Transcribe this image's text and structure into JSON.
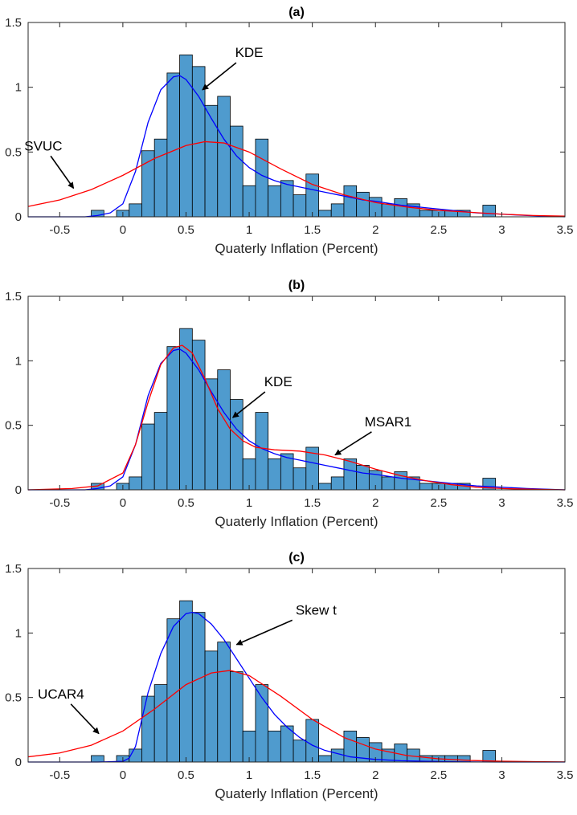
{
  "figure": {
    "description_title": "Histogram of quarterly inflation with fitted densities"
  },
  "chart_data": [
    {
      "type": "bar",
      "title": "(a)",
      "xlabel": "Quaterly Inflation (Percent)",
      "ylabel": "",
      "xlim": [
        -0.75,
        3.5
      ],
      "ylim": [
        0,
        1.5
      ],
      "xticks": [
        -0.5,
        0,
        0.5,
        1,
        1.5,
        2,
        2.5,
        3,
        3.5
      ],
      "xtick_labels": [
        "-0.5",
        "0",
        "0.5",
        "1",
        "1.5",
        "2",
        "2.5",
        "3",
        "3.5"
      ],
      "yticks": [
        0,
        0.5,
        1,
        1.5
      ],
      "ytick_labels": [
        "0",
        "0.5",
        "1",
        "1.5"
      ],
      "histogram": {
        "bin_start": -0.25,
        "bin_width": 0.1,
        "counts": [
          0.05,
          0,
          0.05,
          0.1,
          0.51,
          0.6,
          1.11,
          1.25,
          1.16,
          0.86,
          0.93,
          0.7,
          0.24,
          0.6,
          0.24,
          0.28,
          0.17,
          0.33,
          0.05,
          0.1,
          0.24,
          0.19,
          0.15,
          0.1,
          0.14,
          0.1,
          0.05,
          0.05,
          0.05,
          0.05,
          0,
          0.09
        ],
        "color": "#4f9bce"
      },
      "series": [
        {
          "name": "KDE",
          "color": "#0000ff",
          "x": [
            -0.75,
            -0.3,
            -0.2,
            -0.1,
            0,
            0.1,
            0.2,
            0.3,
            0.4,
            0.45,
            0.5,
            0.6,
            0.7,
            0.8,
            0.9,
            1,
            1.1,
            1.2,
            1.3,
            1.4,
            1.5,
            1.6,
            1.7,
            1.8,
            1.9,
            2,
            2.2,
            2.4,
            2.6,
            2.8,
            3,
            3.2,
            3.5
          ],
          "y": [
            0,
            0,
            0.01,
            0.03,
            0.1,
            0.35,
            0.73,
            0.98,
            1.08,
            1.09,
            1.06,
            0.93,
            0.76,
            0.6,
            0.47,
            0.38,
            0.32,
            0.28,
            0.25,
            0.23,
            0.21,
            0.19,
            0.17,
            0.15,
            0.13,
            0.12,
            0.09,
            0.07,
            0.05,
            0.03,
            0.02,
            0.01,
            0
          ]
        },
        {
          "name": "SVUC",
          "color": "#ff0000",
          "x": [
            -0.75,
            -0.5,
            -0.25,
            0,
            0.25,
            0.5,
            0.65,
            0.8,
            1,
            1.25,
            1.5,
            1.75,
            2,
            2.25,
            2.5,
            2.75,
            3,
            3.25,
            3.5
          ],
          "y": [
            0.08,
            0.13,
            0.21,
            0.32,
            0.45,
            0.55,
            0.58,
            0.57,
            0.5,
            0.37,
            0.25,
            0.17,
            0.11,
            0.075,
            0.05,
            0.035,
            0.02,
            0.01,
            0.005
          ]
        }
      ],
      "annotations": [
        {
          "text": "KDE",
          "x": 1.0,
          "y": 1.27,
          "arrow_to": [
            0.63,
            0.98
          ]
        },
        {
          "text": "SVUC",
          "x": -0.63,
          "y": 0.55,
          "arrow_to": [
            -0.39,
            0.22
          ]
        }
      ]
    },
    {
      "type": "bar",
      "title": "(b)",
      "xlabel": "Quaterly Inflation (Percent)",
      "ylabel": "",
      "xlim": [
        -0.75,
        3.5
      ],
      "ylim": [
        0,
        1.5
      ],
      "xticks": [
        -0.5,
        0,
        0.5,
        1,
        1.5,
        2,
        2.5,
        3,
        3.5
      ],
      "xtick_labels": [
        "-0.5",
        "0",
        "0.5",
        "1",
        "1.5",
        "2",
        "2.5",
        "3",
        "3.5"
      ],
      "yticks": [
        0,
        0.5,
        1,
        1.5
      ],
      "ytick_labels": [
        "0",
        "0.5",
        "1",
        "1.5"
      ],
      "histogram": {
        "bin_start": -0.25,
        "bin_width": 0.1,
        "counts": [
          0.05,
          0,
          0.05,
          0.1,
          0.51,
          0.6,
          1.11,
          1.25,
          1.16,
          0.86,
          0.93,
          0.7,
          0.24,
          0.6,
          0.24,
          0.28,
          0.17,
          0.33,
          0.05,
          0.1,
          0.24,
          0.19,
          0.15,
          0.1,
          0.14,
          0.1,
          0.05,
          0.05,
          0.05,
          0.05,
          0,
          0.09
        ],
        "color": "#4f9bce"
      },
      "series": [
        {
          "name": "KDE",
          "color": "#0000ff",
          "x": [
            -0.75,
            -0.3,
            -0.2,
            -0.1,
            0,
            0.1,
            0.2,
            0.3,
            0.4,
            0.45,
            0.5,
            0.6,
            0.7,
            0.8,
            0.9,
            1,
            1.1,
            1.2,
            1.3,
            1.4,
            1.5,
            1.6,
            1.7,
            1.8,
            1.9,
            2,
            2.2,
            2.4,
            2.6,
            2.8,
            3,
            3.2,
            3.5
          ],
          "y": [
            0,
            0,
            0.01,
            0.03,
            0.1,
            0.35,
            0.73,
            0.98,
            1.08,
            1.09,
            1.06,
            0.93,
            0.76,
            0.6,
            0.47,
            0.38,
            0.32,
            0.28,
            0.25,
            0.23,
            0.21,
            0.19,
            0.17,
            0.15,
            0.13,
            0.12,
            0.09,
            0.07,
            0.05,
            0.03,
            0.02,
            0.01,
            0
          ]
        },
        {
          "name": "MSAR1",
          "color": "#ff0000",
          "x": [
            -0.75,
            -0.4,
            -0.2,
            0,
            0.1,
            0.2,
            0.3,
            0.4,
            0.47,
            0.55,
            0.65,
            0.75,
            0.85,
            0.95,
            1.05,
            1.2,
            1.4,
            1.6,
            1.8,
            2,
            2.2,
            2.4,
            2.6,
            2.8,
            3,
            3.2,
            3.5
          ],
          "y": [
            0,
            0.01,
            0.03,
            0.13,
            0.35,
            0.68,
            0.97,
            1.1,
            1.12,
            1.06,
            0.86,
            0.63,
            0.47,
            0.38,
            0.33,
            0.31,
            0.3,
            0.27,
            0.22,
            0.16,
            0.11,
            0.07,
            0.04,
            0.02,
            0.01,
            0.005,
            0
          ]
        }
      ],
      "annotations": [
        {
          "text": "KDE",
          "x": 1.23,
          "y": 0.84,
          "arrow_to": [
            0.87,
            0.56
          ]
        },
        {
          "text": "MSAR1",
          "x": 2.1,
          "y": 0.53,
          "arrow_to": [
            1.68,
            0.27
          ]
        }
      ]
    },
    {
      "type": "bar",
      "title": "(c)",
      "xlabel": "Quaterly Inflation (Percent)",
      "ylabel": "",
      "xlim": [
        -0.75,
        3.5
      ],
      "ylim": [
        0,
        1.5
      ],
      "xticks": [
        -0.5,
        0,
        0.5,
        1,
        1.5,
        2,
        2.5,
        3,
        3.5
      ],
      "xtick_labels": [
        "-0.5",
        "0",
        "0.5",
        "1",
        "1.5",
        "2",
        "2.5",
        "3",
        "3.5"
      ],
      "yticks": [
        0,
        0.5,
        1,
        1.5
      ],
      "ytick_labels": [
        "0",
        "0.5",
        "1",
        "1.5"
      ],
      "histogram": {
        "bin_start": -0.25,
        "bin_width": 0.1,
        "counts": [
          0.05,
          0,
          0.05,
          0.1,
          0.51,
          0.6,
          1.11,
          1.25,
          1.16,
          0.86,
          0.93,
          0.7,
          0.24,
          0.6,
          0.24,
          0.28,
          0.17,
          0.33,
          0.05,
          0.1,
          0.24,
          0.19,
          0.15,
          0.1,
          0.14,
          0.1,
          0.05,
          0.05,
          0.05,
          0.05,
          0,
          0.09
        ],
        "color": "#4f9bce"
      },
      "series": [
        {
          "name": "Skew t",
          "color": "#0000ff",
          "x": [
            -0.75,
            -0.2,
            0,
            0.05,
            0.1,
            0.15,
            0.2,
            0.3,
            0.4,
            0.5,
            0.55,
            0.6,
            0.7,
            0.8,
            0.9,
            1,
            1.1,
            1.2,
            1.3,
            1.4,
            1.5,
            1.6,
            1.8,
            2,
            2.2,
            2.4,
            2.6,
            2.8,
            3,
            3.5
          ],
          "y": [
            0,
            0,
            0.005,
            0.03,
            0.12,
            0.33,
            0.54,
            0.84,
            1.05,
            1.15,
            1.16,
            1.15,
            1.07,
            0.95,
            0.8,
            0.65,
            0.5,
            0.37,
            0.27,
            0.19,
            0.13,
            0.09,
            0.04,
            0.02,
            0.01,
            0.005,
            0.002,
            0.001,
            0,
            0
          ]
        },
        {
          "name": "UCAR4",
          "color": "#ff0000",
          "x": [
            -0.75,
            -0.5,
            -0.25,
            0,
            0.25,
            0.5,
            0.7,
            0.85,
            1,
            1.25,
            1.5,
            1.75,
            2,
            2.25,
            2.5,
            2.75,
            3,
            3.25,
            3.5
          ],
          "y": [
            0.04,
            0.07,
            0.13,
            0.24,
            0.41,
            0.6,
            0.69,
            0.71,
            0.67,
            0.51,
            0.33,
            0.19,
            0.1,
            0.05,
            0.025,
            0.012,
            0.006,
            0.003,
            0.001
          ]
        }
      ],
      "annotations": [
        {
          "text": "Skew t",
          "x": 1.53,
          "y": 1.18,
          "arrow_to": [
            0.9,
            0.91
          ]
        },
        {
          "text": "UCAR4",
          "x": -0.49,
          "y": 0.53,
          "arrow_to": [
            -0.19,
            0.22
          ]
        }
      ]
    }
  ]
}
